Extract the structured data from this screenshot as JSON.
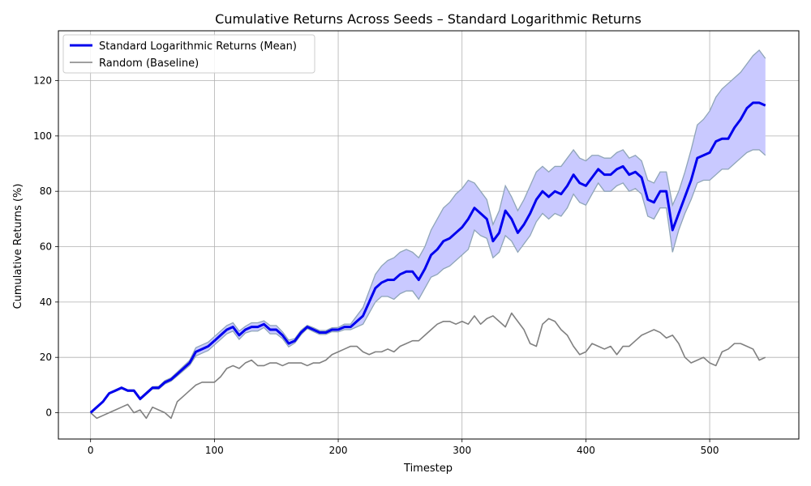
{
  "chart_data": {
    "type": "line",
    "title": "Cumulative Returns Across Seeds – Standard Logarithmic Returns",
    "xlabel": "Timestep",
    "ylabel": "Cumulative Returns (%)",
    "xlim": [
      -26,
      572
    ],
    "ylim": [
      -9.5,
      138
    ],
    "xticks": [
      0,
      100,
      200,
      300,
      400,
      500
    ],
    "yticks": [
      0,
      20,
      40,
      60,
      80,
      100,
      120
    ],
    "grid": true,
    "legend_position": "upper-left",
    "colors": {
      "mean": "#0000ee",
      "band_fill": "#c9c9ff",
      "band_edge": "#8fa5b8",
      "baseline": "#808080"
    },
    "series": [
      {
        "name": "Standard Logarithmic Returns (Mean)",
        "x": [
          0,
          10,
          15,
          20,
          25,
          30,
          35,
          40,
          45,
          50,
          55,
          60,
          65,
          70,
          75,
          80,
          85,
          90,
          95,
          100,
          105,
          110,
          115,
          120,
          125,
          130,
          135,
          140,
          145,
          150,
          155,
          160,
          165,
          170,
          175,
          180,
          185,
          190,
          195,
          200,
          205,
          210,
          215,
          220,
          225,
          230,
          235,
          240,
          245,
          250,
          255,
          260,
          265,
          270,
          275,
          280,
          285,
          290,
          295,
          300,
          305,
          310,
          315,
          320,
          325,
          330,
          335,
          340,
          345,
          350,
          355,
          360,
          365,
          370,
          375,
          380,
          385,
          390,
          395,
          400,
          405,
          410,
          415,
          420,
          425,
          430,
          435,
          440,
          445,
          450,
          455,
          460,
          465,
          470,
          475,
          480,
          485,
          490,
          495,
          500,
          505,
          510,
          515,
          520,
          525,
          530,
          535,
          540,
          545
        ],
        "values": [
          0,
          4,
          7,
          8,
          9,
          8,
          8,
          5,
          7,
          9,
          9,
          11,
          12,
          14,
          16,
          18,
          22,
          23,
          24,
          26,
          28,
          30,
          31,
          28,
          30,
          31,
          31,
          32,
          30,
          30,
          28,
          25,
          26,
          29,
          31,
          30,
          29,
          29,
          30,
          30,
          31,
          31,
          33,
          35,
          40,
          45,
          47,
          48,
          48,
          50,
          51,
          51,
          48,
          52,
          57,
          59,
          62,
          63,
          65,
          67,
          70,
          74,
          72,
          70,
          62,
          65,
          73,
          70,
          65,
          68,
          72,
          77,
          80,
          78,
          80,
          79,
          82,
          86,
          83,
          82,
          85,
          88,
          86,
          86,
          88,
          89,
          86,
          87,
          85,
          77,
          76,
          80,
          80,
          66,
          72,
          78,
          84,
          92,
          93,
          94,
          98,
          99,
          99,
          103,
          106,
          110,
          112,
          112,
          111
        ]
      },
      {
        "name": "Random (Baseline)",
        "x": [
          0,
          5,
          10,
          15,
          20,
          25,
          30,
          35,
          40,
          45,
          50,
          55,
          60,
          65,
          70,
          75,
          80,
          85,
          90,
          95,
          100,
          105,
          110,
          115,
          120,
          125,
          130,
          135,
          140,
          145,
          150,
          155,
          160,
          165,
          170,
          175,
          180,
          185,
          190,
          195,
          200,
          205,
          210,
          215,
          220,
          225,
          230,
          235,
          240,
          245,
          250,
          255,
          260,
          265,
          270,
          275,
          280,
          285,
          290,
          295,
          300,
          305,
          310,
          315,
          320,
          325,
          330,
          335,
          340,
          345,
          350,
          355,
          360,
          365,
          370,
          375,
          380,
          385,
          390,
          395,
          400,
          405,
          410,
          415,
          420,
          425,
          430,
          435,
          440,
          445,
          450,
          455,
          460,
          465,
          470,
          475,
          480,
          485,
          490,
          495,
          500,
          505,
          510,
          515,
          520,
          525,
          530,
          535,
          540,
          545
        ],
        "values": [
          0,
          -2,
          -1,
          0,
          1,
          2,
          3,
          0,
          1,
          -2,
          2,
          1,
          0,
          -2,
          4,
          6,
          8,
          10,
          11,
          11,
          11,
          13,
          16,
          17,
          16,
          18,
          19,
          17,
          17,
          18,
          18,
          17,
          18,
          18,
          18,
          17,
          18,
          18,
          19,
          21,
          22,
          23,
          24,
          24,
          22,
          21,
          22,
          22,
          23,
          22,
          24,
          25,
          26,
          26,
          28,
          30,
          32,
          33,
          33,
          32,
          33,
          32,
          35,
          32,
          34,
          35,
          33,
          31,
          36,
          33,
          30,
          25,
          24,
          32,
          34,
          33,
          30,
          28,
          24,
          21,
          22,
          25,
          24,
          23,
          24,
          21,
          24,
          24,
          26,
          28,
          29,
          30,
          29,
          27,
          28,
          25,
          20,
          18,
          19,
          20,
          18,
          17,
          22,
          23,
          25,
          25,
          24,
          23,
          19,
          20
        ]
      }
    ],
    "band": {
      "x": [
        0,
        10,
        15,
        20,
        25,
        30,
        35,
        40,
        45,
        50,
        55,
        60,
        65,
        70,
        75,
        80,
        85,
        90,
        95,
        100,
        105,
        110,
        115,
        120,
        125,
        130,
        135,
        140,
        145,
        150,
        155,
        160,
        165,
        170,
        175,
        180,
        185,
        190,
        195,
        200,
        205,
        210,
        215,
        220,
        225,
        230,
        235,
        240,
        245,
        250,
        255,
        260,
        265,
        270,
        275,
        280,
        285,
        290,
        295,
        300,
        305,
        310,
        315,
        320,
        325,
        330,
        335,
        340,
        345,
        350,
        355,
        360,
        365,
        370,
        375,
        380,
        385,
        390,
        395,
        400,
        405,
        410,
        415,
        420,
        425,
        430,
        435,
        440,
        445,
        450,
        455,
        460,
        465,
        470,
        475,
        480,
        485,
        490,
        495,
        500,
        505,
        510,
        515,
        520,
        525,
        530,
        535,
        540,
        545
      ],
      "upper": [
        0,
        4.2,
        7.2,
        8.3,
        9.3,
        8.3,
        8.3,
        5.4,
        7.4,
        9.4,
        9.5,
        11.6,
        12.6,
        14.7,
        16.8,
        18.9,
        23.5,
        24.5,
        25.5,
        27.5,
        29.5,
        31.5,
        32.5,
        29.5,
        31.2,
        32.5,
        32.5,
        33.2,
        31.5,
        31.5,
        29.2,
        26.2,
        26.8,
        29.8,
        31.6,
        30.7,
        29.7,
        29.7,
        30.7,
        30.8,
        32,
        32,
        35,
        38,
        44,
        50,
        53,
        55,
        56,
        58,
        59,
        58,
        56,
        60,
        66,
        70,
        74,
        76,
        79,
        81,
        84,
        83,
        80,
        77,
        68,
        73,
        82,
        78,
        73,
        77,
        82,
        87,
        89,
        87,
        89,
        89,
        92,
        95,
        92,
        91,
        93,
        93,
        92,
        92,
        94,
        95,
        92,
        93,
        91,
        84,
        83,
        87,
        87,
        75,
        80,
        87,
        95,
        104,
        106,
        109,
        114,
        117,
        119,
        121,
        123,
        126,
        129,
        131,
        128
      ],
      "lower": [
        0,
        3.8,
        6.8,
        7.7,
        8.7,
        7.7,
        7.7,
        4.6,
        6.6,
        8.6,
        8.5,
        10.4,
        11.4,
        13.3,
        15.2,
        17.1,
        20.5,
        21.5,
        22.5,
        24.5,
        26.5,
        28.5,
        29.5,
        26.5,
        28.8,
        29.5,
        29.5,
        30.8,
        28.5,
        28.5,
        26.8,
        23.8,
        25.2,
        28.2,
        30.4,
        29.3,
        28.3,
        28.3,
        29.3,
        29.2,
        30,
        30,
        31,
        32,
        36,
        40,
        42,
        42,
        41,
        43,
        44,
        44,
        41,
        45,
        49,
        50,
        52,
        53,
        55,
        57,
        59,
        66,
        64,
        63,
        56,
        58,
        64,
        62,
        58,
        61,
        64,
        69,
        72,
        70,
        72,
        71,
        74,
        79,
        76,
        75,
        79,
        83,
        80,
        80,
        82,
        83,
        80,
        81,
        79,
        71,
        70,
        74,
        74,
        58,
        66,
        72,
        77,
        83,
        84,
        84,
        86,
        88,
        88,
        90,
        92,
        94,
        95,
        95,
        93
      ]
    },
    "legend": [
      {
        "label": "Standard Logarithmic Returns (Mean)",
        "color": "#0000ee",
        "width": 3
      },
      {
        "label": "Random (Baseline)",
        "color": "#808080",
        "width": 1.6
      }
    ]
  }
}
